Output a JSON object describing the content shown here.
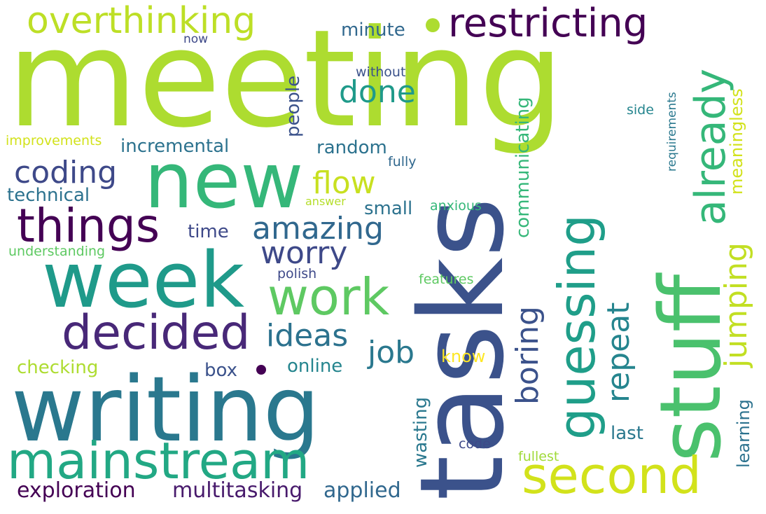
{
  "words": [
    {
      "text": "meeting",
      "color": "#addc30",
      "orientation": "horizontal"
    },
    {
      "text": "tasks",
      "color": "#3b528b",
      "orientation": "vertical"
    },
    {
      "text": "stuff",
      "color": "#4ac16d",
      "orientation": "vertical"
    },
    {
      "text": "writing",
      "color": "#2a788e",
      "orientation": "horizontal"
    },
    {
      "text": "week",
      "color": "#1f9a8a",
      "orientation": "horizontal"
    },
    {
      "text": "new",
      "color": "#35b779",
      "orientation": "horizontal"
    },
    {
      "text": "mainstream",
      "color": "#22a884",
      "orientation": "horizontal"
    },
    {
      "text": "second",
      "color": "#d2e21b",
      "orientation": "horizontal"
    },
    {
      "text": "guessing",
      "color": "#1f9e89",
      "orientation": "vertical"
    },
    {
      "text": "decided",
      "color": "#482878",
      "orientation": "horizontal"
    },
    {
      "text": "things",
      "color": "#440154",
      "orientation": "horizontal"
    },
    {
      "text": "work",
      "color": "#5ec962",
      "orientation": "horizontal"
    },
    {
      "text": "already",
      "color": "#35b779",
      "orientation": "vertical"
    },
    {
      "text": "restricting",
      "color": "#440154",
      "orientation": "horizontal"
    },
    {
      "text": "overthinking",
      "color": "#bddf26",
      "orientation": "horizontal"
    },
    {
      "text": "amazing",
      "color": "#31688e",
      "orientation": "horizontal"
    },
    {
      "text": "coding",
      "color": "#3e4989",
      "orientation": "horizontal"
    },
    {
      "text": "worry",
      "color": "#3e4989",
      "orientation": "horizontal"
    },
    {
      "text": "ideas",
      "color": "#2c728e",
      "orientation": "horizontal"
    },
    {
      "text": "job",
      "color": "#2a788e",
      "orientation": "horizontal"
    },
    {
      "text": "boring",
      "color": "#3b528b",
      "orientation": "vertical"
    },
    {
      "text": "repeat",
      "color": "#25858e",
      "orientation": "vertical"
    },
    {
      "text": "jumping",
      "color": "#c2df23",
      "orientation": "vertical"
    },
    {
      "text": "flow",
      "color": "#c8e020",
      "orientation": "horizontal"
    },
    {
      "text": "done",
      "color": "#1f9a8a",
      "orientation": "horizontal"
    },
    {
      "text": "exploration",
      "color": "#440154",
      "orientation": "horizontal"
    },
    {
      "text": "multitasking",
      "color": "#481a6c",
      "orientation": "horizontal"
    },
    {
      "text": "applied",
      "color": "#31688e",
      "orientation": "horizontal"
    },
    {
      "text": "incremental",
      "color": "#2c728e",
      "orientation": "horizontal"
    },
    {
      "text": "technical",
      "color": "#2c728e",
      "orientation": "horizontal"
    },
    {
      "text": "checking",
      "color": "#addc30",
      "orientation": "horizontal"
    },
    {
      "text": "online",
      "color": "#25858e",
      "orientation": "horizontal"
    },
    {
      "text": "random",
      "color": "#2c728e",
      "orientation": "horizontal"
    },
    {
      "text": "communicating",
      "color": "#35b779",
      "orientation": "vertical"
    },
    {
      "text": "meaningless",
      "color": "#d2e21b",
      "orientation": "vertical"
    },
    {
      "text": "learning",
      "color": "#2c728e",
      "orientation": "vertical"
    },
    {
      "text": "people",
      "color": "#3b528b",
      "orientation": "vertical"
    },
    {
      "text": "time",
      "color": "#3e4989",
      "orientation": "horizontal"
    },
    {
      "text": "small",
      "color": "#2c728e",
      "orientation": "horizontal"
    },
    {
      "text": "minute",
      "color": "#31688e",
      "orientation": "horizontal"
    },
    {
      "text": "wasting",
      "color": "#2a788e",
      "orientation": "vertical"
    },
    {
      "text": "last",
      "color": "#2a788e",
      "orientation": "horizontal"
    },
    {
      "text": "box",
      "color": "#3b528b",
      "orientation": "horizontal"
    },
    {
      "text": "know",
      "color": "#fde725",
      "orientation": "horizontal"
    },
    {
      "text": "improvements",
      "color": "#d2e21b",
      "orientation": "horizontal"
    },
    {
      "text": "understanding",
      "color": "#5ec962",
      "orientation": "horizontal"
    },
    {
      "text": "polish",
      "color": "#3e4989",
      "orientation": "horizontal"
    },
    {
      "text": "features",
      "color": "#5ec962",
      "orientation": "horizontal"
    },
    {
      "text": "anxious",
      "color": "#35b779",
      "orientation": "horizontal"
    },
    {
      "text": "answer",
      "color": "#b5de2b",
      "orientation": "horizontal"
    },
    {
      "text": "fully",
      "color": "#31688e",
      "orientation": "horizontal"
    },
    {
      "text": "without",
      "color": "#3b528b",
      "orientation": "horizontal"
    },
    {
      "text": "side",
      "color": "#25858e",
      "orientation": "horizontal"
    },
    {
      "text": "requirements",
      "color": "#2a788e",
      "orientation": "vertical"
    },
    {
      "text": "code",
      "color": "#3e4989",
      "orientation": "horizontal"
    },
    {
      "text": "fullest",
      "color": "#a0da39",
      "orientation": "horizontal"
    },
    {
      "text": "now",
      "color": "#3e4989",
      "orientation": "horizontal"
    }
  ],
  "dots": [
    {
      "color": "#addc30"
    },
    {
      "color": "#440154"
    }
  ]
}
